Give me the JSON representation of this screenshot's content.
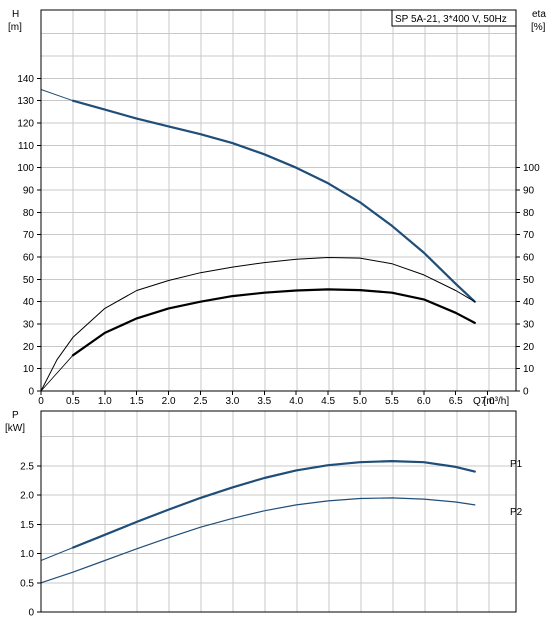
{
  "chart_data": [
    {
      "type": "line",
      "title": "SP 5A-21, 3*400 V, 50Hz",
      "xlabel": "Q [m³/h]",
      "xlim": [
        0,
        7.3
      ],
      "x_ticks": [
        "0",
        "0.5",
        "1.0",
        "1.5",
        "2.0",
        "2.5",
        "3.0",
        "3.5",
        "4.0",
        "4.5",
        "5.0",
        "5.5",
        "6.0",
        "6.5",
        "7.0"
      ],
      "y_left": {
        "label": "H",
        "unit": "[m]",
        "ylim": [
          0,
          150
        ],
        "ticks": [
          "0",
          "10",
          "20",
          "30",
          "40",
          "50",
          "60",
          "70",
          "80",
          "90",
          "100",
          "110",
          "120",
          "130",
          "140"
        ]
      },
      "y_right": {
        "label": "eta",
        "unit": "[%]",
        "ylim": [
          0,
          150
        ],
        "ticks": [
          "0",
          "10",
          "20",
          "30",
          "40",
          "50",
          "60",
          "70",
          "80",
          "90",
          "100"
        ]
      },
      "grid": true,
      "series": [
        {
          "axis": "left",
          "color": "#1f4e79",
          "width": 2.2,
          "x": [
            0.5,
            1.0,
            1.5,
            2.0,
            2.5,
            3.0,
            3.5,
            4.0,
            4.5,
            5.0,
            5.5,
            6.0,
            6.5,
            6.8
          ],
          "y": [
            130,
            126,
            122,
            118.5,
            115,
            111,
            106,
            100,
            93,
            84.5,
            74,
            62,
            48,
            40
          ]
        },
        {
          "axis": "left",
          "color": "#1f4e79",
          "width": 1,
          "x": [
            0,
            0.5
          ],
          "y": [
            135,
            130
          ]
        },
        {
          "axis": "right",
          "color": "#000000",
          "width": 1,
          "x": [
            0,
            0.25,
            0.5,
            1.0,
            1.5,
            2.0,
            2.5,
            3.0,
            3.5,
            4.0,
            4.5,
            5.0,
            5.5,
            6.0,
            6.5,
            6.8
          ],
          "y": [
            0,
            14,
            24,
            37,
            45,
            49.5,
            53,
            55.5,
            57.5,
            59,
            59.8,
            59.5,
            57,
            52,
            45,
            40
          ]
        },
        {
          "axis": "right",
          "color": "#000000",
          "width": 2.2,
          "x": [
            0.5,
            1.0,
            1.5,
            2.0,
            2.5,
            3.0,
            3.5,
            4.0,
            4.5,
            5.0,
            5.5,
            6.0,
            6.5,
            6.8
          ],
          "y": [
            16,
            26,
            32.5,
            37,
            40,
            42.5,
            44,
            45,
            45.5,
            45.2,
            44,
            41,
            35,
            30.5
          ]
        },
        {
          "axis": "right",
          "color": "#000000",
          "width": 0.8,
          "x": [
            0,
            0.5
          ],
          "y": [
            0,
            16
          ]
        }
      ]
    },
    {
      "type": "line",
      "xlim": [
        0,
        7.3
      ],
      "y_left": {
        "label": "P",
        "unit": "[kW]",
        "ylim": [
          0,
          3.2
        ],
        "ticks": [
          "0",
          "0.5",
          "1.0",
          "1.5",
          "2.0",
          "2.5"
        ]
      },
      "grid": true,
      "series": [
        {
          "name": "P1",
          "color": "#1f4e79",
          "width": 2.2,
          "x": [
            0.5,
            1.0,
            1.5,
            2.0,
            2.5,
            3.0,
            3.5,
            4.0,
            4.5,
            5.0,
            5.5,
            6.0,
            6.5,
            6.8
          ],
          "y": [
            1.1,
            1.32,
            1.54,
            1.75,
            1.95,
            2.13,
            2.29,
            2.42,
            2.51,
            2.56,
            2.58,
            2.56,
            2.48,
            2.4
          ]
        },
        {
          "color": "#1f4e79",
          "width": 1,
          "x": [
            0,
            0.5
          ],
          "y": [
            0.88,
            1.1
          ]
        },
        {
          "name": "P2",
          "color": "#1f4e79",
          "width": 1.2,
          "x": [
            0,
            0.5,
            1.0,
            1.5,
            2.0,
            2.5,
            3.0,
            3.5,
            4.0,
            4.5,
            5.0,
            5.5,
            6.0,
            6.5,
            6.8
          ],
          "y": [
            0.5,
            0.68,
            0.88,
            1.08,
            1.27,
            1.45,
            1.6,
            1.73,
            1.83,
            1.9,
            1.94,
            1.95,
            1.93,
            1.88,
            1.83
          ]
        }
      ]
    }
  ]
}
